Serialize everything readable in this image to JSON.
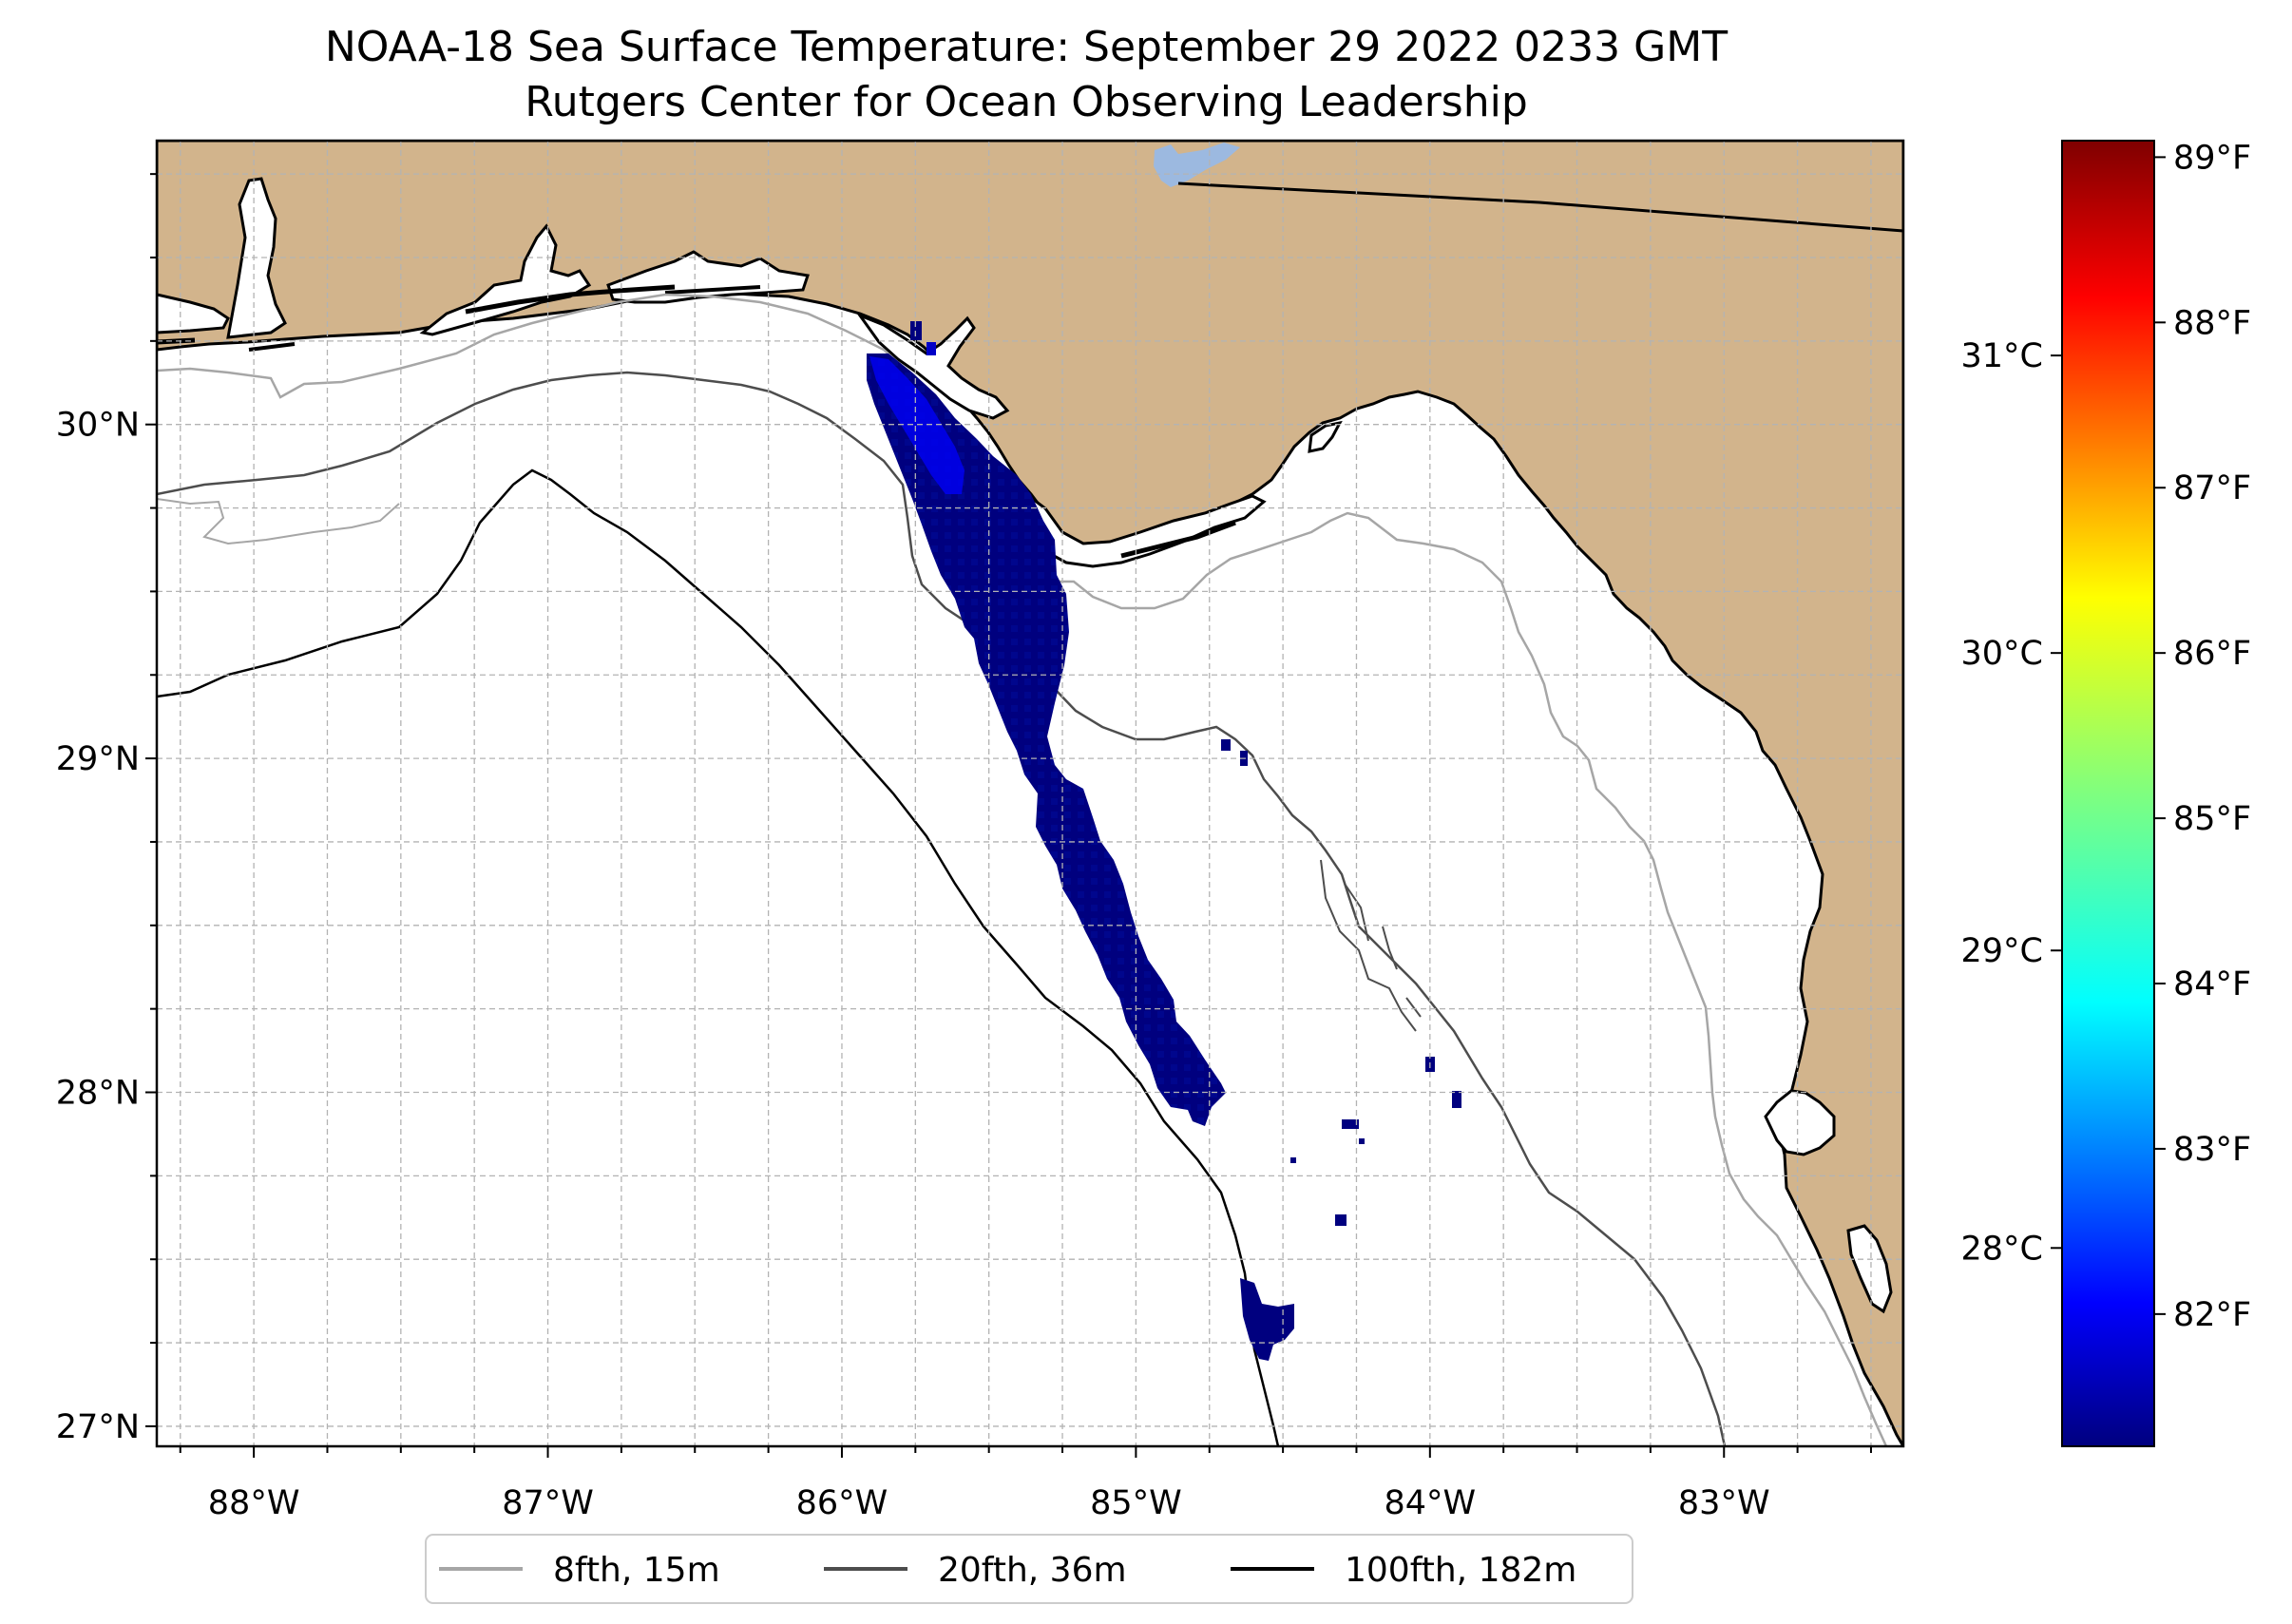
{
  "title": {
    "line1": "NOAA-18 Sea Surface Temperature: September 29 2022 0233 GMT",
    "line2": "Rutgers Center for Ocean Observing Leadership"
  },
  "map": {
    "lon_range": [
      -88.33,
      -82.39
    ],
    "lat_range": [
      26.94,
      30.85
    ],
    "lon_ticks": [
      {
        "value": -88,
        "label": "88°W"
      },
      {
        "value": -87,
        "label": "87°W"
      },
      {
        "value": -86,
        "label": "86°W"
      },
      {
        "value": -85,
        "label": "85°W"
      },
      {
        "value": -84,
        "label": "84°W"
      },
      {
        "value": -83,
        "label": "83°W"
      }
    ],
    "lat_ticks": [
      {
        "value": 30,
        "label": "30°N"
      },
      {
        "value": 29,
        "label": "29°N"
      },
      {
        "value": 28,
        "label": "28°N"
      },
      {
        "value": 27,
        "label": "27°N"
      }
    ],
    "land_color": "#d2b48c",
    "water_color": "#ffffff",
    "lake_color": "#9cb9e0",
    "sst_color": "#00007f",
    "grid": true
  },
  "colorbar": {
    "celsius_ticks": [
      {
        "value": 31,
        "label": "31°C"
      },
      {
        "value": 30,
        "label": "30°C"
      },
      {
        "value": 29,
        "label": "29°C"
      },
      {
        "value": 28,
        "label": "28°C"
      }
    ],
    "fahrenheit_ticks": [
      {
        "value": 89,
        "label": "89°F"
      },
      {
        "value": 88,
        "label": "88°F"
      },
      {
        "value": 87,
        "label": "87°F"
      },
      {
        "value": 86,
        "label": "86°F"
      },
      {
        "value": 85,
        "label": "85°F"
      },
      {
        "value": 84,
        "label": "84°F"
      },
      {
        "value": 83,
        "label": "83°F"
      },
      {
        "value": 82,
        "label": "82°F"
      }
    ],
    "colormap": "jet",
    "range_f": [
      81.2,
      89.1
    ]
  },
  "legend": {
    "placement": "bottom-center",
    "items": [
      {
        "label": "8fth, 15m",
        "color": "#a6a6a6"
      },
      {
        "label": "20fth, 36m",
        "color": "#4d4d4d"
      },
      {
        "label": "100fth, 182m",
        "color": "#000000"
      }
    ]
  }
}
